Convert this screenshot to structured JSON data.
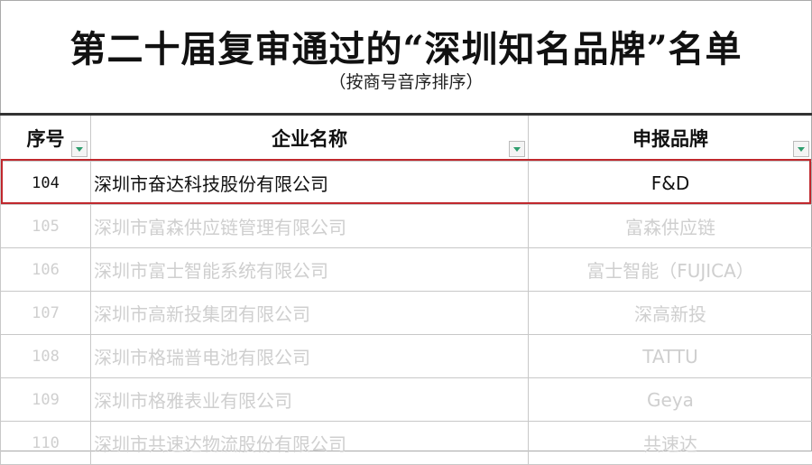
{
  "title": "第二十届复审通过的“深圳知名品牌”名单",
  "subtitle": "（按商号音序排序）",
  "columns": [
    "序号",
    "企业名称",
    "申报品牌"
  ],
  "rows": [
    {
      "no": "104",
      "company": "深圳市奋达科技股份有限公司",
      "brand": "F&D",
      "highlighted": true
    },
    {
      "no": "105",
      "company": "深圳市富森供应链管理有限公司",
      "brand": "富森供应链"
    },
    {
      "no": "106",
      "company": "深圳市富士智能系统有限公司",
      "brand": "富士智能（FUJICA）"
    },
    {
      "no": "107",
      "company": "深圳市高新投集团有限公司",
      "brand": "深高新投"
    },
    {
      "no": "108",
      "company": "深圳市格瑞普电池有限公司",
      "brand": "TATTU"
    },
    {
      "no": "109",
      "company": "深圳市格雅表业有限公司",
      "brand": "Geya"
    },
    {
      "no": "110",
      "company": "深圳市共速达物流股份有限公司",
      "brand": "共速达"
    }
  ],
  "colors": {
    "highlight_border": "#c0282d",
    "filter_arrow": "#2e9e6e",
    "faded_text": "#cfcfcf"
  },
  "icons": {
    "filter": "filter-dropdown-icon"
  }
}
